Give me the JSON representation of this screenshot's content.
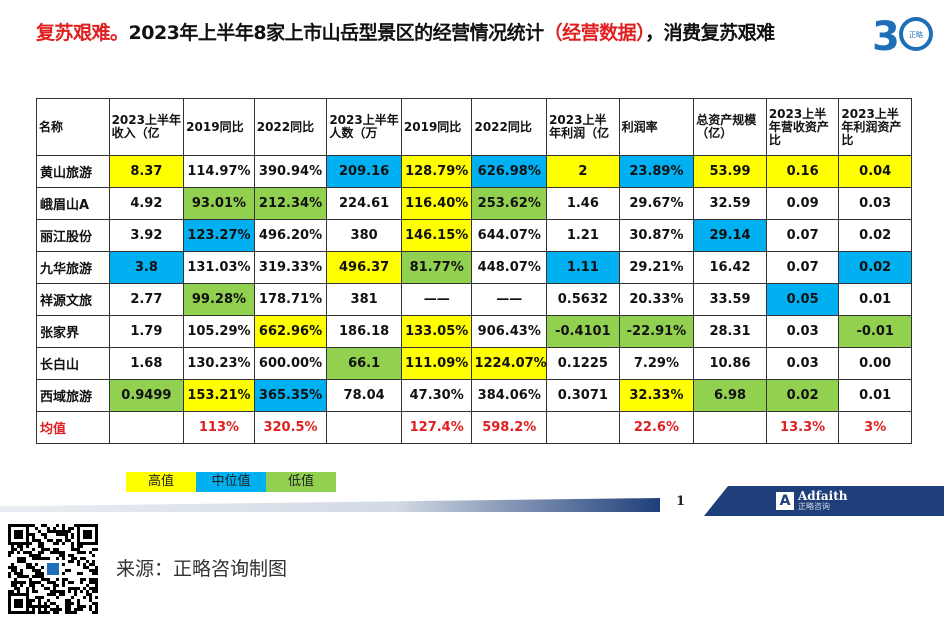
{
  "title": {
    "part1": "复苏艰难。",
    "part2": "2023年上半年8家上市山岳型景区的经营情况统计",
    "part3": "（经营数据）",
    "part4": "，消费复苏艰难"
  },
  "colors": {
    "high": "#ffff00",
    "mid": "#00b0f0",
    "low": "#92d050",
    "accent_red": "#e02020",
    "navy": "#1f3f7a"
  },
  "table": {
    "headers": [
      "名称",
      "2023上半年收入（亿",
      "2019同比",
      "2022同比",
      "2023上半年人数（万",
      "2019同比",
      "2022同比",
      "2023上半年利润（亿",
      "利润率",
      "总资产规模（亿）",
      "2023上半年营收资产比",
      "2023上半年利润资产比"
    ],
    "rows": [
      [
        "黄山旅游",
        "8.37",
        "114.97%",
        "390.94%",
        "209.16",
        "128.79%",
        "626.98%",
        "2",
        "23.89%",
        "53.99",
        "0.16",
        "0.04"
      ],
      [
        "峨眉山A",
        "4.92",
        "93.01%",
        "212.34%",
        "224.61",
        "116.40%",
        "253.62%",
        "1.46",
        "29.67%",
        "32.59",
        "0.09",
        "0.03"
      ],
      [
        "丽江股份",
        "3.92",
        "123.27%",
        "496.20%",
        "380",
        "146.15%",
        "644.07%",
        "1.21",
        "30.87%",
        "29.14",
        "0.07",
        "0.02"
      ],
      [
        "九华旅游",
        "3.8",
        "131.03%",
        "319.33%",
        "496.37",
        "81.77%",
        "448.07%",
        "1.11",
        "29.21%",
        "16.42",
        "0.07",
        "0.02"
      ],
      [
        "祥源文旅",
        "2.77",
        "99.28%",
        "178.71%",
        "381",
        "——",
        "——",
        "0.5632",
        "20.33%",
        "33.59",
        "0.05",
        "0.01"
      ],
      [
        "张家界",
        "1.79",
        "105.29%",
        "662.96%",
        "186.18",
        "133.05%",
        "906.43%",
        "-0.4101",
        "-22.91%",
        "28.31",
        "0.03",
        "-0.01"
      ],
      [
        "长白山",
        "1.68",
        "130.23%",
        "600.00%",
        "66.1",
        "111.09%",
        "1224.07%",
        "0.1225",
        "7.29%",
        "10.86",
        "0.03",
        "0.00"
      ],
      [
        "西域旅游",
        "0.9499",
        "153.21%",
        "365.35%",
        "78.04",
        "47.30%",
        "384.06%",
        "0.3071",
        "32.33%",
        "6.98",
        "0.02",
        "0.01"
      ]
    ],
    "highlight": [
      [
        "",
        "y",
        "",
        "",
        "b",
        "y",
        "b",
        "y",
        "b",
        "y",
        "y",
        "y"
      ],
      [
        "",
        "",
        "g",
        "g",
        "",
        "y",
        "g",
        "",
        "",
        "",
        "",
        ""
      ],
      [
        "",
        "",
        "b",
        "",
        "",
        "y",
        "",
        "",
        "",
        "b",
        "",
        ""
      ],
      [
        "",
        "b",
        "",
        "",
        "y",
        "g",
        "",
        "b",
        "",
        "",
        "",
        "b"
      ],
      [
        "",
        "",
        "g",
        "",
        "",
        "",
        "",
        "",
        "",
        "",
        "b",
        ""
      ],
      [
        "",
        "",
        "",
        "y",
        "",
        "y",
        "",
        "g",
        "g",
        "",
        "",
        "g"
      ],
      [
        "",
        "",
        "",
        "",
        "g",
        "y",
        "y",
        "",
        "",
        "",
        "",
        ""
      ],
      [
        "",
        "g",
        "y",
        "b",
        "",
        "",
        "",
        "",
        "y",
        "g",
        "g",
        ""
      ]
    ],
    "average_row": [
      "均值",
      "",
      "113%",
      "320.5%",
      "",
      "127.4%",
      "598.2%",
      "",
      "22.6%",
      "",
      "13.3%",
      "3%"
    ]
  },
  "legend": {
    "high": "高值",
    "mid": "中位值",
    "low": "低值"
  },
  "page_number": "1",
  "brand": {
    "name": "Adfaith",
    "sub": "正略咨询"
  },
  "source": "来源：正略咨询制图",
  "icons": {
    "logo": "anniversary-30-logo",
    "qr": "qr-code",
    "brand_mark": "adfaith-logo"
  }
}
